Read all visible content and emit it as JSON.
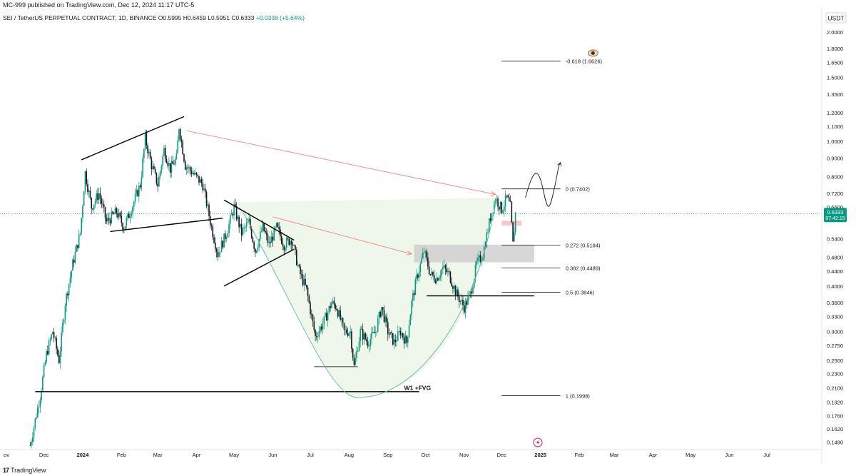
{
  "header": {
    "publisher": "MC-999 published on TradingView.com, Dec 12, 2024 11:17 UTC-5",
    "symbol_line": "SEI / TetherUS PERPETUAL CONTRACT, 1D, BINANCE",
    "ohlc": "O0.5995 H0.6459 L0.5951 C0.6333",
    "change": "+0.0338 (+5.64%)"
  },
  "footer": {
    "logo_text": "TradingView"
  },
  "colors": {
    "up": "#089981",
    "down": "#131722",
    "price_tag": "#089981",
    "arrow": "#f28b8b",
    "curve": "#6cb8b0",
    "cup_fill": "#eef7ea",
    "fvg_box": "#d0d0d0",
    "pink_box": "#f8c8c8"
  },
  "chart_data": {
    "type": "candlestick",
    "scale": "log",
    "currency_label": "USDT",
    "ylim": [
      0.142,
      2.1
    ],
    "y_ticks": [
      "2.0000",
      "1.8000",
      "1.6500",
      "1.5000",
      "1.3500",
      "1.2000",
      "1.1000",
      "1.0000",
      "0.9000",
      "0.8000",
      "0.7200",
      "0.6600",
      "0.5400",
      "0.4800",
      "0.4400",
      "0.4000",
      "0.3600",
      "0.3300",
      "0.3000",
      "0.2750",
      "0.2500",
      "0.2300",
      "0.2100",
      "0.1920",
      "0.1760",
      "0.1620",
      "0.1490"
    ],
    "x_ticks": [
      "ov",
      "Dec",
      "2024",
      "Feb",
      "Mar",
      "Apr",
      "May",
      "Jun",
      "Jul",
      "Aug",
      "Sep",
      "Oct",
      "Nov",
      "Dec",
      "2025",
      "Feb",
      "Mar",
      "Apr",
      "May",
      "Jun",
      "Jul"
    ],
    "x_dates": [
      "2023-11-01",
      "2023-12-01",
      "2024-01-01",
      "2024-02-01",
      "2024-03-01",
      "2024-04-01",
      "2024-05-01",
      "2024-06-01",
      "2024-07-01",
      "2024-08-01",
      "2024-09-01",
      "2024-10-01",
      "2024-11-01",
      "2024-12-01",
      "2025-01-01",
      "2025-02-01",
      "2025-03-01",
      "2025-04-01",
      "2025-05-01",
      "2025-06-01",
      "2025-07-01"
    ],
    "last_price": {
      "value": 0.6333,
      "label": "0.6333",
      "countdown": "07:42:15"
    },
    "price_path": [
      [
        "2023-11-20",
        0.146
      ],
      [
        "2023-11-28",
        0.2
      ],
      [
        "2023-12-03",
        0.26
      ],
      [
        "2023-12-08",
        0.3
      ],
      [
        "2023-12-13",
        0.25
      ],
      [
        "2023-12-18",
        0.36
      ],
      [
        "2023-12-24",
        0.46
      ],
      [
        "2023-12-30",
        0.56
      ],
      [
        "2024-01-03",
        0.82
      ],
      [
        "2024-01-08",
        0.66
      ],
      [
        "2024-01-14",
        0.72
      ],
      [
        "2024-01-20",
        0.6
      ],
      [
        "2024-01-28",
        0.64
      ],
      [
        "2024-02-03",
        0.58
      ],
      [
        "2024-02-08",
        0.64
      ],
      [
        "2024-02-16",
        0.76
      ],
      [
        "2024-02-20",
        1.02
      ],
      [
        "2024-02-25",
        0.86
      ],
      [
        "2024-03-01",
        0.76
      ],
      [
        "2024-03-06",
        0.95
      ],
      [
        "2024-03-11",
        0.84
      ],
      [
        "2024-03-16",
        0.9
      ],
      [
        "2024-03-18",
        1.1
      ],
      [
        "2024-03-23",
        0.86
      ],
      [
        "2024-03-29",
        0.82
      ],
      [
        "2024-04-06",
        0.76
      ],
      [
        "2024-04-13",
        0.58
      ],
      [
        "2024-04-18",
        0.49
      ],
      [
        "2024-04-25",
        0.56
      ],
      [
        "2024-05-01",
        0.66
      ],
      [
        "2024-05-07",
        0.56
      ],
      [
        "2024-05-13",
        0.6
      ],
      [
        "2024-05-18",
        0.5
      ],
      [
        "2024-05-24",
        0.58
      ],
      [
        "2024-05-29",
        0.52
      ],
      [
        "2024-06-04",
        0.58
      ],
      [
        "2024-06-10",
        0.52
      ],
      [
        "2024-06-16",
        0.54
      ],
      [
        "2024-06-22",
        0.44
      ],
      [
        "2024-06-28",
        0.39
      ],
      [
        "2024-07-05",
        0.29
      ],
      [
        "2024-07-12",
        0.32
      ],
      [
        "2024-07-18",
        0.36
      ],
      [
        "2024-07-22",
        0.35
      ],
      [
        "2024-07-28",
        0.3
      ],
      [
        "2024-08-02",
        0.3
      ],
      [
        "2024-08-05",
        0.24
      ],
      [
        "2024-08-10",
        0.3
      ],
      [
        "2024-08-16",
        0.28
      ],
      [
        "2024-08-22",
        0.3
      ],
      [
        "2024-08-27",
        0.35
      ],
      [
        "2024-09-01",
        0.3
      ],
      [
        "2024-09-06",
        0.28
      ],
      [
        "2024-09-11",
        0.3
      ],
      [
        "2024-09-16",
        0.28
      ],
      [
        "2024-09-20",
        0.36
      ],
      [
        "2024-09-24",
        0.42
      ],
      [
        "2024-09-30",
        0.5
      ],
      [
        "2024-10-05",
        0.43
      ],
      [
        "2024-10-10",
        0.42
      ],
      [
        "2024-10-15",
        0.45
      ],
      [
        "2024-10-20",
        0.43
      ],
      [
        "2024-10-26",
        0.38
      ],
      [
        "2024-11-01",
        0.35
      ],
      [
        "2024-11-06",
        0.38
      ],
      [
        "2024-11-11",
        0.46
      ],
      [
        "2024-11-16",
        0.49
      ],
      [
        "2024-11-22",
        0.62
      ],
      [
        "2024-11-26",
        0.7
      ],
      [
        "2024-12-01",
        0.65
      ],
      [
        "2024-12-05",
        0.7
      ],
      [
        "2024-12-08",
        0.66
      ],
      [
        "2024-12-10",
        0.52
      ],
      [
        "2024-12-12",
        0.6333
      ]
    ],
    "fib_levels": [
      {
        "label": "-0.618 (1.6626)",
        "value": 1.6626
      },
      {
        "label": "0 (0.7402)",
        "value": 0.7402
      },
      {
        "label": "0.272 (0.5184)",
        "value": 0.5184
      },
      {
        "label": "0.382 (0.4489)",
        "value": 0.4489
      },
      {
        "label": "0.5 (0.3846)",
        "value": 0.3846
      },
      {
        "label": "1 (0.1998)",
        "value": 0.1998
      }
    ],
    "annotations": {
      "fvg_label": "W1 +FVG",
      "eye_icon": "eye-icon",
      "flash_icon": "lightning-icon"
    }
  }
}
